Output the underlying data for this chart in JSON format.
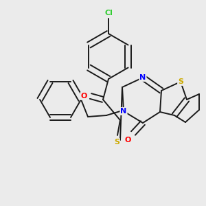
{
  "bg_color": "#ebebeb",
  "bond_color": "#1a1a1a",
  "bond_width": 1.4,
  "atom_colors": {
    "Cl": "#32cd32",
    "O": "#ff0000",
    "S": "#ccaa00",
    "N": "#0000ff"
  },
  "atom_fontsizes": {
    "Cl": 8,
    "O": 8,
    "S": 8,
    "N": 8
  },
  "figsize": [
    3.0,
    3.0
  ],
  "dpi": 100,
  "xlim": [
    0,
    300
  ],
  "ylim": [
    0,
    300
  ]
}
